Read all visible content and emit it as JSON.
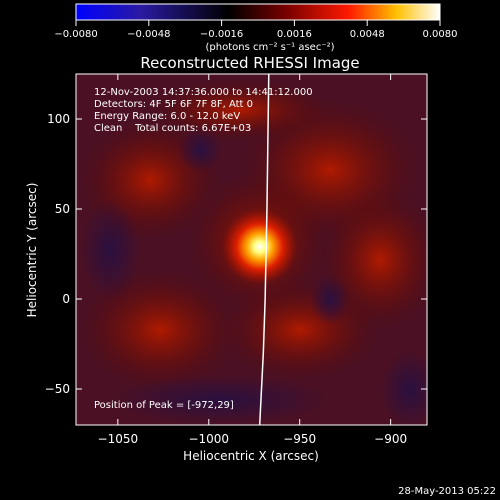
{
  "chart_data": {
    "type": "heatmap",
    "title": "Reconstructed RHESSI Image",
    "xlabel": "Heliocentric X (arcsec)",
    "ylabel": "Heliocentric Y (arcsec)",
    "xlim": [
      -1073,
      -880
    ],
    "ylim": [
      -70,
      125
    ],
    "xticks": [
      -1050,
      -1000,
      -950,
      -900
    ],
    "yticks": [
      -50,
      0,
      50,
      100
    ],
    "colorbar": {
      "ticks": [
        "-0.0080",
        "-0.0048",
        "-0.0016",
        "0.0016",
        "0.0048",
        "0.0080"
      ],
      "unit_label": "(photons cm⁻² s⁻¹ asec⁻²)",
      "min": -0.008,
      "max": 0.008,
      "colors": [
        "#0000ff",
        "#2a1aa0",
        "#000000",
        "#7a0000",
        "#ff0000",
        "#ffc000",
        "#ffffff"
      ]
    },
    "annotations": [
      "12-Nov-2003 14:37:36.000 to 14:41:12.000",
      "Detectors: 4F 5F 6F 7F 8F, Att 0",
      "Energy Range: 6.0 - 12.0 keV",
      "Clean    Total counts: 6.67E+03"
    ],
    "peak_label": "Position of Peak = [-972,29]",
    "peak": {
      "x": -972,
      "y": 29
    },
    "limb_line": [
      {
        "x": -967,
        "y": 125
      },
      {
        "x": -968,
        "y": 50
      },
      {
        "x": -969,
        "y": 0
      },
      {
        "x": -970,
        "y": -30
      },
      {
        "x": -972,
        "y": -70
      }
    ],
    "grid": false
  },
  "footer": {
    "date": "28-May-2013 05:22"
  }
}
